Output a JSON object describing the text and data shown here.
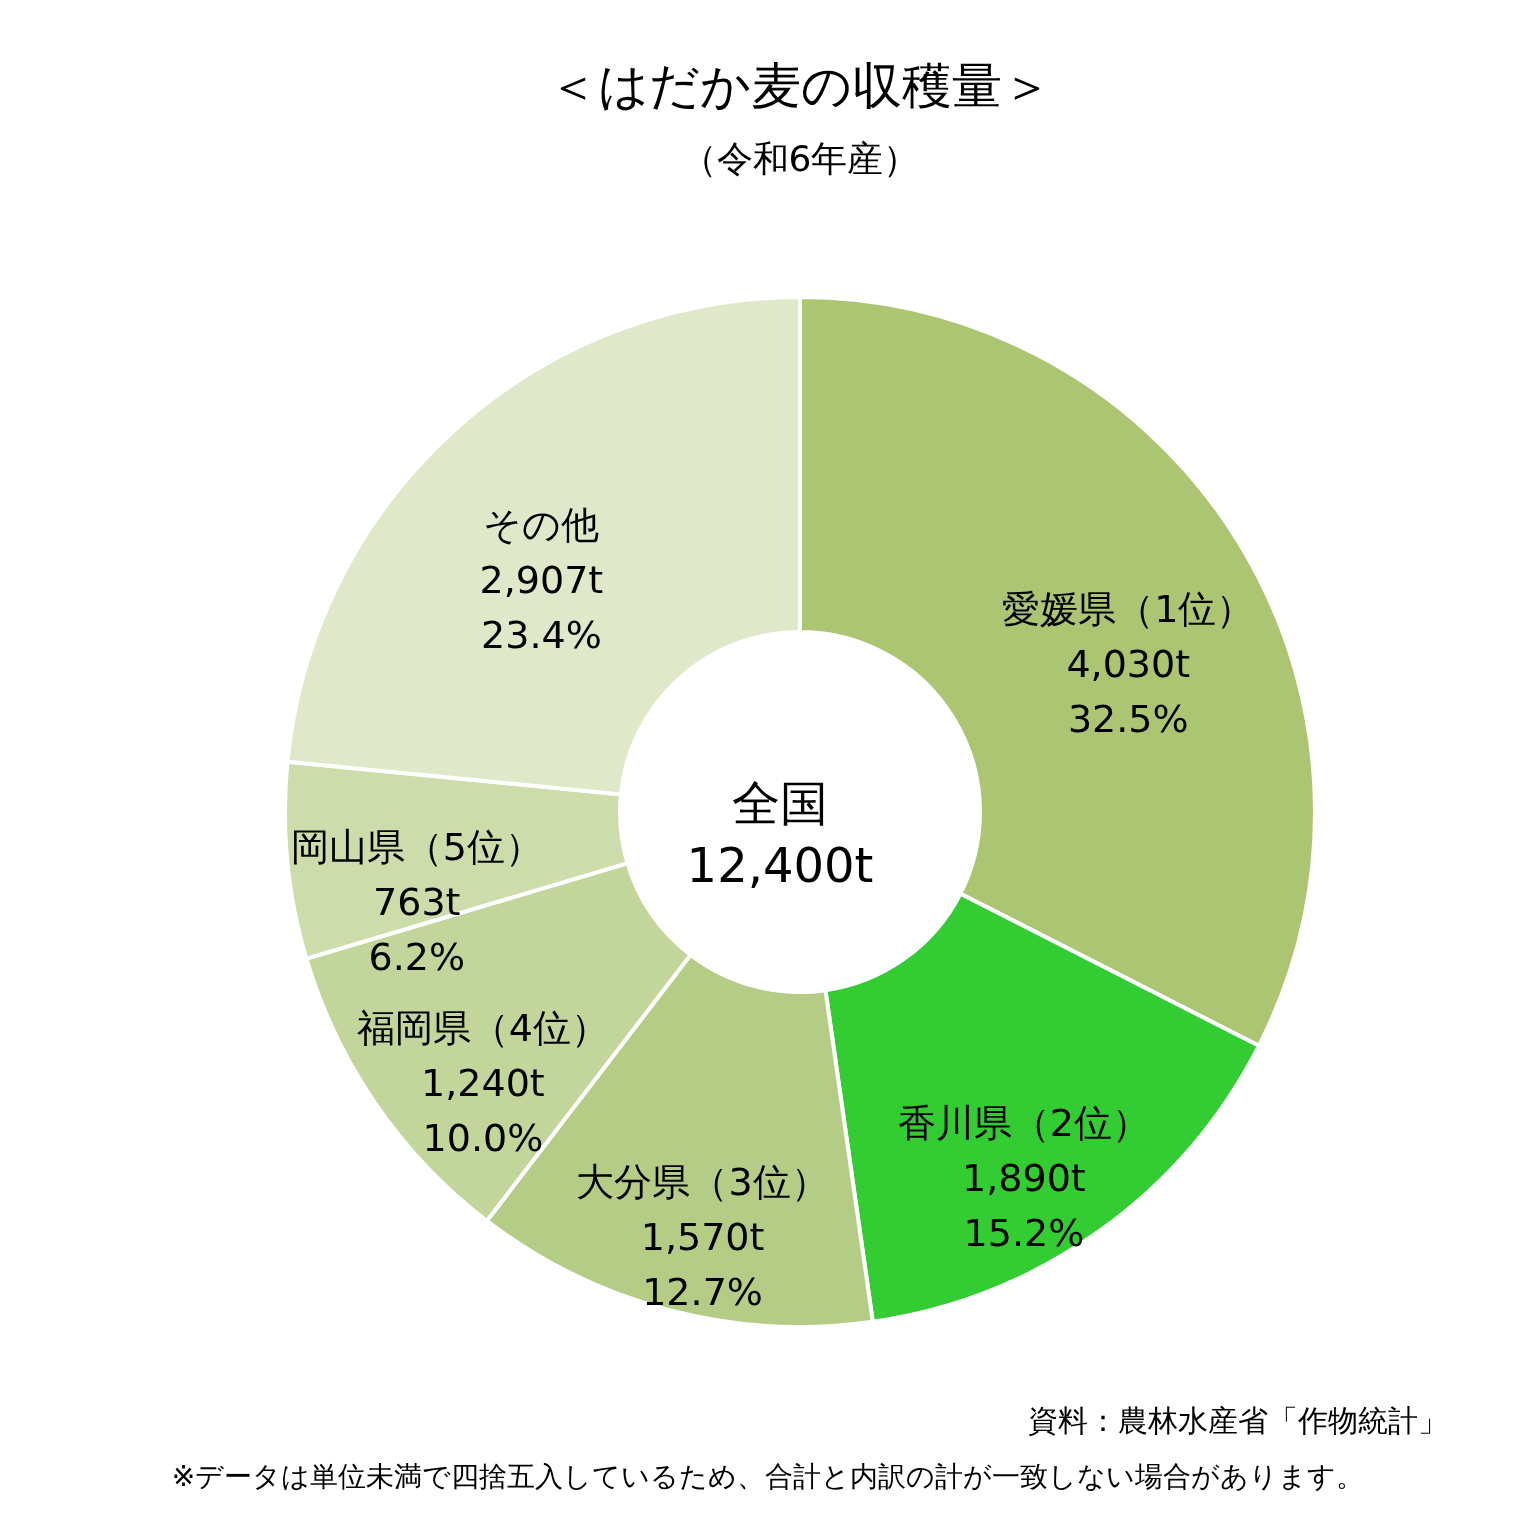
{
  "chart_data": {
    "type": "donut",
    "title": "＜はだか麦の収穫量＞",
    "subtitle": "（令和6年産）",
    "categories": [
      "愛媛県（1位）",
      "香川県（2位）",
      "大分県（3位）",
      "福岡県（4位）",
      "岡山県（5位）",
      "その他"
    ],
    "values": [
      4030,
      1890,
      1570,
      1240,
      763,
      2907
    ],
    "colors": [
      "#abc572",
      "#33cc33",
      "#b5cc86",
      "#c2d69b",
      "#ccdcaa",
      "#dfe8c9"
    ],
    "value_labels": [
      "4,030t",
      "1,890t",
      "1,570t",
      "1,240t",
      "763t",
      "2,907t"
    ],
    "annotations": [
      "全国\n12,400t",
      "資料：農林水産省「作物統計」",
      "※データは単位未満で四捨五入しているため、合計と内訳の計が一致しない場合があります。",
      "32.5%",
      "15.2%",
      "12.7%",
      "10.0%",
      "6.2%",
      "23.4%"
    ]
  }
}
